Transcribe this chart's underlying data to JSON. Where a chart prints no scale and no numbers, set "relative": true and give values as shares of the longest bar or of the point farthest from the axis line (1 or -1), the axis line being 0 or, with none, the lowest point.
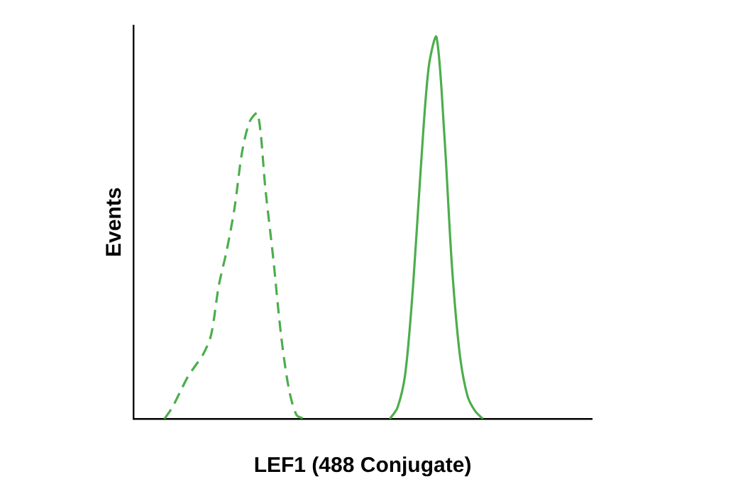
{
  "chart_data": {
    "type": "line",
    "relative": true,
    "xlabel": "LEF1 (488 Conjugate)",
    "ylabel": "Events",
    "grid": false,
    "legend": false,
    "marker": "none",
    "categories": [
      null,
      null,
      null,
      null,
      null,
      null,
      null,
      null,
      null,
      null,
      null,
      null,
      null,
      null,
      null,
      null,
      null,
      null,
      null,
      null,
      null,
      null,
      null,
      null,
      null,
      null,
      null,
      null,
      null,
      null,
      null,
      null,
      null,
      null,
      null,
      null,
      null,
      null,
      null,
      null,
      null,
      null,
      null,
      null,
      null,
      null,
      null,
      null,
      null,
      null,
      null,
      null,
      null,
      null,
      null,
      null,
      null,
      null,
      null,
      null
    ],
    "series": [
      {
        "color": "#4cae4c",
        "line_style": "dashed",
        "values": [
          null,
          null,
          null,
          null,
          0,
          0.03,
          0.07,
          0.11,
          0.14,
          0.17,
          0.22,
          0.35,
          0.44,
          0.55,
          0.7,
          0.78,
          0.8,
          0.6,
          0.42,
          0.22,
          0.08,
          0.01,
          0,
          null,
          null,
          null,
          null,
          null,
          null,
          null,
          null,
          null,
          null,
          null,
          null,
          null,
          null,
          null,
          null,
          null,
          null,
          null,
          null,
          null,
          null,
          null,
          null,
          null,
          null,
          null,
          null,
          null,
          null,
          null,
          null,
          null,
          null,
          null,
          null,
          null
        ]
      },
      {
        "color": "#4cae4c",
        "line_style": "solid",
        "values": [
          null,
          null,
          null,
          null,
          null,
          null,
          null,
          null,
          null,
          null,
          null,
          null,
          null,
          null,
          null,
          null,
          null,
          null,
          null,
          null,
          null,
          null,
          null,
          null,
          null,
          null,
          null,
          null,
          null,
          null,
          null,
          null,
          null,
          0,
          0.03,
          0.12,
          0.35,
          0.66,
          0.92,
          1,
          0.75,
          0.4,
          0.17,
          0.06,
          0.02,
          0,
          null,
          null,
          null,
          null,
          null,
          null,
          null,
          null,
          null,
          null,
          null,
          null,
          null,
          null
        ]
      }
    ]
  }
}
